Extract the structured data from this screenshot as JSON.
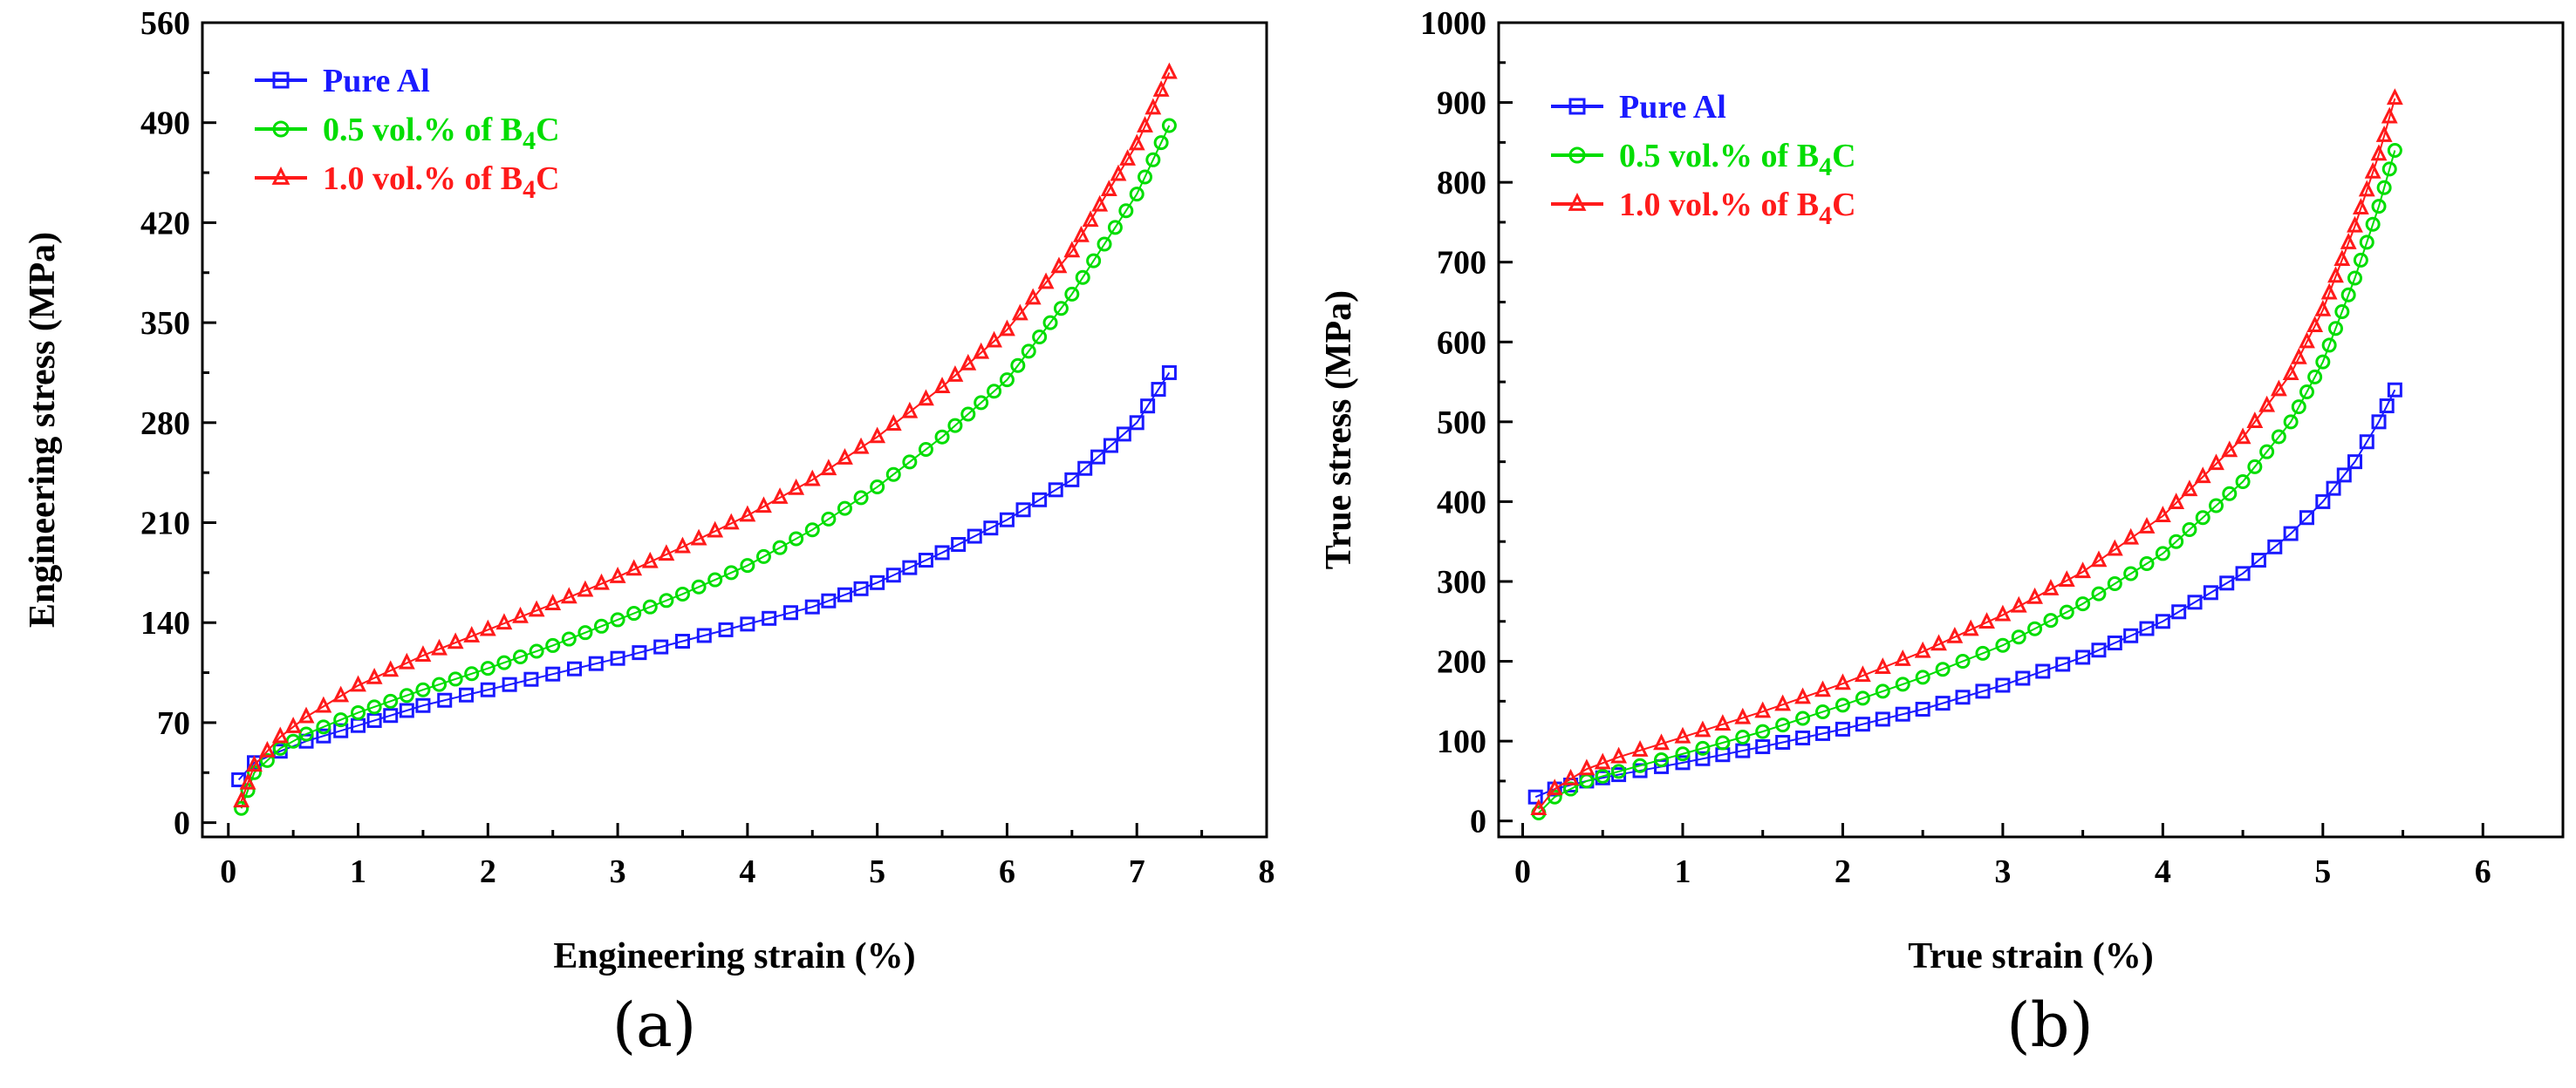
{
  "colors": {
    "pure": "#1a1aff",
    "b4c05": "#00dd00",
    "b4c10": "#ff1a1a"
  },
  "chart_data": [
    {
      "type": "line",
      "panel": "(a)",
      "xlabel": "Engineering strain (%)",
      "ylabel": "Engineering stress (MPa)",
      "xlim": [
        -0.2,
        8
      ],
      "ylim": [
        -10,
        560
      ],
      "xticks": [
        0,
        1,
        2,
        3,
        4,
        5,
        6,
        7,
        8
      ],
      "yticks": [
        0,
        70,
        140,
        210,
        280,
        350,
        420,
        490,
        560
      ],
      "legend_position": "top-left",
      "series": [
        {
          "name": "Pure Al",
          "sub": "",
          "tail": "",
          "marker": "square",
          "color_key": "pure",
          "x": [
            0.08,
            0.2,
            0.4,
            0.6,
            1.0,
            1.5,
            2.0,
            2.5,
            3.0,
            3.5,
            4.0,
            4.5,
            5.0,
            5.5,
            6.0,
            6.5,
            7.0,
            7.25
          ],
          "y": [
            30,
            42,
            50,
            57,
            68,
            82,
            93,
            104,
            115,
            127,
            139,
            151,
            168,
            189,
            212,
            240,
            280,
            315
          ]
        },
        {
          "name": "0.5 vol.% of B",
          "sub": "4",
          "tail": "C",
          "marker": "circle",
          "color_key": "b4c05",
          "x": [
            0.1,
            0.2,
            0.4,
            0.6,
            1.0,
            1.5,
            2.0,
            2.5,
            3.0,
            3.5,
            4.0,
            4.5,
            5.0,
            5.5,
            6.0,
            6.5,
            7.0,
            7.25
          ],
          "y": [
            10,
            35,
            52,
            62,
            77,
            93,
            108,
            124,
            142,
            160,
            180,
            205,
            235,
            270,
            310,
            370,
            440,
            488
          ]
        },
        {
          "name": "1.0 vol.% of B",
          "sub": "4",
          "tail": "C",
          "marker": "triangle",
          "color_key": "b4c10",
          "x": [
            0.1,
            0.2,
            0.4,
            0.6,
            1.0,
            1.5,
            2.0,
            2.5,
            3.0,
            3.5,
            4.0,
            4.5,
            5.0,
            5.5,
            6.0,
            6.5,
            7.0,
            7.25
          ],
          "y": [
            15,
            40,
            60,
            74,
            96,
            117,
            135,
            153,
            172,
            193,
            215,
            240,
            270,
            305,
            345,
            400,
            475,
            525
          ]
        }
      ]
    },
    {
      "type": "line",
      "panel": "(b)",
      "xlabel": "True strain (%)",
      "ylabel": "True stress (MPa)",
      "xlim": [
        -0.15,
        6.5
      ],
      "ylim": [
        -20,
        1000
      ],
      "xticks": [
        0,
        1,
        2,
        3,
        4,
        5,
        6
      ],
      "yticks": [
        0,
        100,
        200,
        300,
        400,
        500,
        600,
        700,
        800,
        900,
        1000
      ],
      "legend_position": "top-left",
      "series": [
        {
          "name": "Pure Al",
          "sub": "",
          "tail": "",
          "marker": "square",
          "color_key": "pure",
          "x": [
            0.08,
            0.2,
            0.4,
            0.6,
            1.0,
            1.5,
            2.0,
            2.5,
            3.0,
            3.5,
            4.0,
            4.5,
            4.8,
            5.0,
            5.2,
            5.35,
            5.45
          ],
          "y": [
            30,
            40,
            50,
            58,
            73,
            93,
            115,
            140,
            170,
            205,
            250,
            310,
            360,
            400,
            450,
            500,
            540
          ]
        },
        {
          "name": "0.5 vol.% of B",
          "sub": "4",
          "tail": "C",
          "marker": "circle",
          "color_key": "b4c05",
          "x": [
            0.1,
            0.2,
            0.4,
            0.6,
            1.0,
            1.5,
            2.0,
            2.5,
            3.0,
            3.5,
            4.0,
            4.5,
            4.8,
            5.0,
            5.2,
            5.35,
            5.45
          ],
          "y": [
            10,
            30,
            50,
            62,
            84,
            112,
            145,
            180,
            220,
            272,
            335,
            425,
            500,
            575,
            680,
            770,
            840
          ]
        },
        {
          "name": "1.0 vol.% of B",
          "sub": "4",
          "tail": "C",
          "marker": "triangle",
          "color_key": "b4c10",
          "x": [
            0.1,
            0.2,
            0.4,
            0.6,
            1.0,
            1.5,
            2.0,
            2.5,
            3.0,
            3.5,
            4.0,
            4.5,
            4.8,
            5.0,
            5.2,
            5.35,
            5.45
          ],
          "y": [
            15,
            40,
            65,
            80,
            105,
            137,
            172,
            212,
            258,
            312,
            382,
            480,
            560,
            640,
            745,
            835,
            905
          ]
        }
      ]
    }
  ]
}
